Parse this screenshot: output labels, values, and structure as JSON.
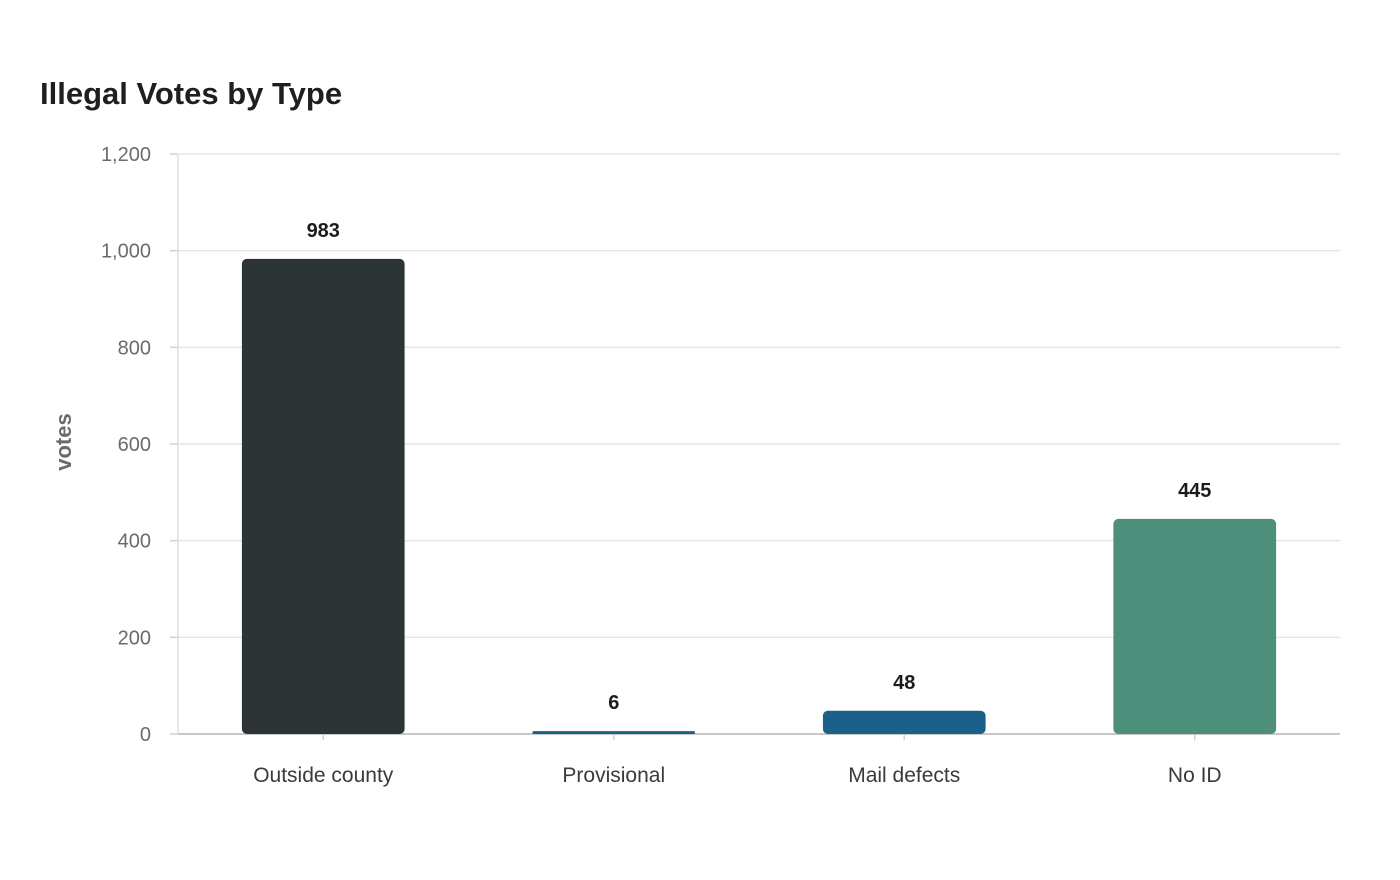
{
  "chart_data": {
    "type": "bar",
    "title": "Illegal Votes by Type",
    "xlabel": "",
    "ylabel": "votes",
    "categories": [
      "Outside county",
      "Provisional",
      "Mail defects",
      "No ID"
    ],
    "values": [
      983,
      6,
      48,
      445
    ],
    "colors": [
      "#2d3436",
      "#1a6088",
      "#1a6088",
      "#4e8f7c"
    ],
    "ylim": [
      0,
      1200
    ],
    "yticks": [
      0,
      200,
      400,
      600,
      800,
      1000,
      1200
    ],
    "ytick_labels": [
      "0",
      "200",
      "400",
      "600",
      "800",
      "1,000",
      "1,200"
    ],
    "grid": true,
    "legend": "none"
  }
}
